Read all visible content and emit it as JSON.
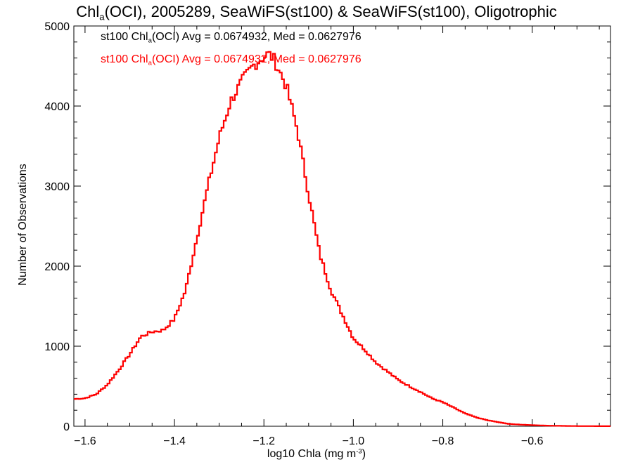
{
  "chart_data": {
    "type": "histogram",
    "title": {
      "pre": "Chl",
      "sub": "a",
      "post": "(OCI), 2005289, SeaWiFS(st100) & SeaWiFS(st100), Oligotrophic"
    },
    "xlabel": {
      "pre": "log10 Chla (mg m",
      "sup": "-3",
      "post": ")"
    },
    "ylabel": "Number of Observations",
    "xlim": [
      -1.625,
      -0.425
    ],
    "ylim": [
      0,
      5000
    ],
    "x_ticks": [
      -1.6,
      -1.4,
      -1.2,
      -1.0,
      -0.8,
      -0.6
    ],
    "x_tick_labels": [
      "−1.6",
      "−1.4",
      "−1.2",
      "−1.0",
      "−0.8",
      "−0.6"
    ],
    "y_ticks": [
      0,
      1000,
      2000,
      3000,
      4000,
      5000
    ],
    "y_tick_labels": [
      "0",
      "1000",
      "2000",
      "3000",
      "4000",
      "5000"
    ],
    "annotations": [
      {
        "pre": "st100 Chl",
        "sub": "a",
        "post": "(OCI) Avg = 0.0674932, Med = 0.0627976",
        "color": "#000000"
      },
      {
        "pre": "st100 Chl",
        "sub": "a",
        "post": "(OCI) Avg = 0.0674932, Med = 0.0627976",
        "color": "#ff0000"
      }
    ],
    "series": [
      {
        "color": "#ff0000",
        "x": [
          -1.625,
          -1.6,
          -1.575,
          -1.55,
          -1.525,
          -1.5,
          -1.475,
          -1.45,
          -1.425,
          -1.4,
          -1.375,
          -1.35,
          -1.325,
          -1.3,
          -1.275,
          -1.25,
          -1.225,
          -1.2,
          -1.19,
          -1.18,
          -1.175,
          -1.15,
          -1.125,
          -1.1,
          -1.075,
          -1.05,
          -1.025,
          -1.0,
          -0.975,
          -0.95,
          -0.925,
          -0.9,
          -0.875,
          -0.85,
          -0.825,
          -0.8,
          -0.775,
          -0.75,
          -0.725,
          -0.7,
          -0.675,
          -0.65,
          -0.625,
          -0.6,
          -0.575,
          -0.55,
          -0.525,
          -0.5,
          -0.475,
          -0.45,
          -0.425
        ],
        "y": [
          340,
          350,
          400,
          520,
          700,
          900,
          1120,
          1180,
          1200,
          1340,
          1700,
          2350,
          3000,
          3600,
          4050,
          4300,
          4500,
          4620,
          4650,
          4600,
          4560,
          4250,
          3700,
          2900,
          2150,
          1700,
          1400,
          1100,
          960,
          800,
          690,
          580,
          500,
          430,
          350,
          300,
          230,
          160,
          110,
          75,
          50,
          28,
          20,
          14,
          9,
          6,
          4,
          2,
          2,
          1,
          1
        ]
      }
    ]
  }
}
